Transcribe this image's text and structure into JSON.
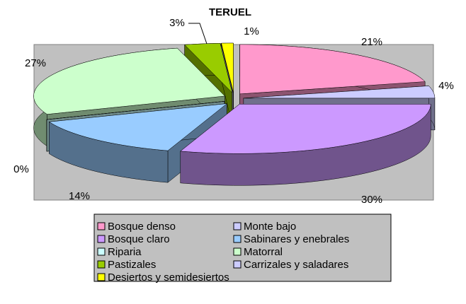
{
  "chart_data": {
    "type": "pie3d",
    "title": "TERUEL",
    "categories": [
      "Bosque denso",
      "Monte bajo",
      "Bosque claro",
      "Sabinares y enebrales",
      "Riparia",
      "Matorral",
      "Pastizales",
      "Carrizales y saladares",
      "Desiertos y semidesiertos"
    ],
    "values": [
      21,
      4,
      30,
      14,
      0,
      27,
      3,
      0,
      1
    ],
    "value_labels": [
      "21%",
      "4%",
      "30%",
      "14%",
      "0%",
      "27%",
      "3%",
      null,
      "1%"
    ],
    "colors": [
      "#FF99CC",
      "#CCCCFF",
      "#CC99FF",
      "#99CCFF",
      "#CCFFFF",
      "#CCFFCC",
      "#99CC00",
      "#CCCCFF",
      "#FFFF00"
    ],
    "legend": "bottom"
  }
}
